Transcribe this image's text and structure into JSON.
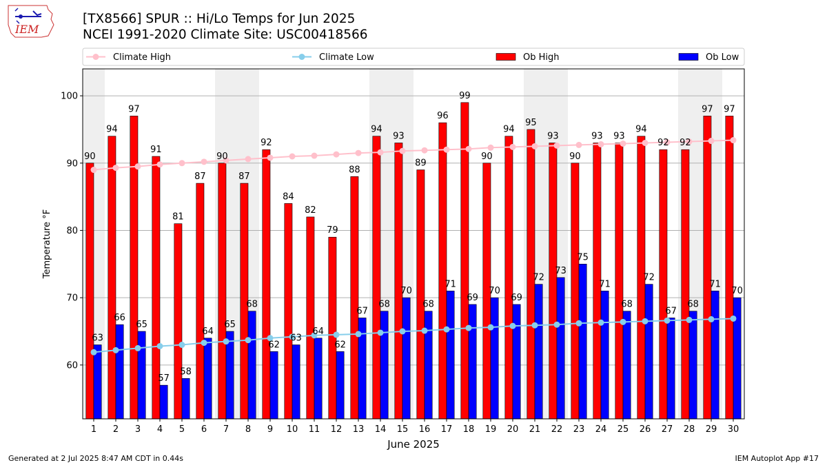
{
  "header": {
    "title_line1": "[TX8566] SPUR :: Hi/Lo Temps for Jun 2025",
    "title_line2": "NCEI 1991-2020 Climate Site: USC00418566",
    "logo_text": "IEM"
  },
  "footer": {
    "generated": "Generated at 2 Jul 2025 8:47 AM CDT in 0.44s",
    "app": "IEM Autoplot App #17"
  },
  "chart_data": {
    "type": "bar",
    "title": "[TX8566] SPUR :: Hi/Lo Temps for Jun 2025",
    "subtitle": "NCEI 1991-2020 Climate Site: USC00418566",
    "xlabel": "June 2025",
    "ylabel": "Temperature °F",
    "ylabel_display": "Temperature $^\\circ$F",
    "ylim": [
      52,
      104
    ],
    "yticks": [
      60,
      70,
      80,
      90,
      100
    ],
    "grid": true,
    "legend_placement": "top",
    "categories": [
      1,
      2,
      3,
      4,
      5,
      6,
      7,
      8,
      9,
      10,
      11,
      12,
      13,
      14,
      15,
      16,
      17,
      18,
      19,
      20,
      21,
      22,
      23,
      24,
      25,
      26,
      27,
      28,
      29,
      30
    ],
    "weekend_shaded_days": [
      1,
      7,
      8,
      14,
      15,
      21,
      22,
      28,
      29
    ],
    "series": [
      {
        "name": "Ob High",
        "kind": "bar",
        "color": "#ff0000",
        "values": [
          90,
          94,
          97,
          91,
          81,
          87,
          90,
          87,
          92,
          84,
          82,
          79,
          88,
          94,
          93,
          89,
          96,
          99,
          90,
          94,
          95,
          93,
          90,
          93,
          93,
          94,
          92,
          92,
          97,
          97
        ]
      },
      {
        "name": "Ob Low",
        "kind": "bar",
        "color": "#0000ff",
        "values": [
          63,
          66,
          65,
          57,
          58,
          64,
          65,
          68,
          62,
          63,
          64,
          62,
          67,
          68,
          70,
          68,
          71,
          69,
          70,
          69,
          72,
          73,
          75,
          71,
          68,
          72,
          67,
          68,
          71,
          70
        ]
      },
      {
        "name": "Climate High",
        "kind": "line",
        "color": "#ffc0cb",
        "values": [
          89.0,
          89.3,
          89.5,
          89.8,
          90.0,
          90.2,
          90.4,
          90.6,
          90.8,
          91.0,
          91.1,
          91.3,
          91.5,
          91.6,
          91.8,
          91.9,
          92.0,
          92.1,
          92.3,
          92.4,
          92.5,
          92.6,
          92.7,
          92.8,
          92.9,
          93.0,
          93.1,
          93.2,
          93.3,
          93.4
        ]
      },
      {
        "name": "Climate Low",
        "kind": "line",
        "color": "#87ceeb",
        "values": [
          61.9,
          62.2,
          62.5,
          62.8,
          63.0,
          63.3,
          63.5,
          63.7,
          64.0,
          64.2,
          64.4,
          64.5,
          64.6,
          64.8,
          65.0,
          65.1,
          65.3,
          65.5,
          65.6,
          65.8,
          65.9,
          66.0,
          66.2,
          66.3,
          66.4,
          66.5,
          66.6,
          66.7,
          66.8,
          66.9
        ]
      }
    ],
    "legend_order": [
      "Climate High",
      "Climate Low",
      "Ob High",
      "Ob Low"
    ]
  }
}
